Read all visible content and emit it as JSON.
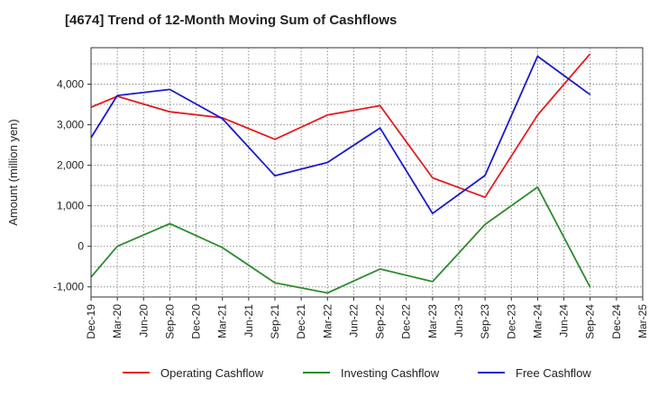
{
  "chart_data": {
    "type": "line",
    "title": "[4674]  Trend of 12-Month Moving Sum of Cashflows",
    "xlabel": "",
    "ylabel": "Amount (million yen)",
    "categories": [
      "Dec-19",
      "Mar-20",
      "Jun-20",
      "Sep-20",
      "Dec-20",
      "Mar-21",
      "Jun-21",
      "Sep-21",
      "Dec-21",
      "Mar-22",
      "Jun-22",
      "Sep-22",
      "Dec-22",
      "Mar-23",
      "Jun-23",
      "Sep-23",
      "Dec-23",
      "Mar-24",
      "Jun-24",
      "Sep-24",
      "Dec-24",
      "Mar-25"
    ],
    "ylim": [
      -1250,
      4900
    ],
    "yticks": [
      -1000,
      0,
      1000,
      2000,
      3000,
      4000
    ],
    "ytick_labels": [
      "-1,000",
      "0",
      "1,000",
      "2,000",
      "3,000",
      "4,000"
    ],
    "grid": true,
    "legend_position": "bottom",
    "series": [
      {
        "name": "Operating Cashflow",
        "color": "#e41a1c",
        "values": [
          3430,
          3700,
          null,
          3320,
          null,
          3170,
          null,
          2640,
          null,
          3240,
          null,
          3470,
          null,
          1690,
          null,
          1210,
          null,
          3240,
          null,
          4750,
          null,
          null
        ]
      },
      {
        "name": "Investing Cashflow",
        "color": "#2e8b2e",
        "values": [
          -760,
          0,
          null,
          560,
          null,
          -30,
          null,
          -900,
          null,
          -1150,
          null,
          -560,
          null,
          -870,
          null,
          540,
          null,
          1460,
          null,
          -1010,
          null,
          null
        ]
      },
      {
        "name": "Free Cashflow",
        "color": "#1a1acd",
        "values": [
          2680,
          3720,
          null,
          3870,
          null,
          3150,
          null,
          1740,
          null,
          2070,
          null,
          2920,
          null,
          810,
          null,
          1750,
          null,
          4690,
          null,
          3740,
          null,
          null
        ]
      }
    ]
  }
}
